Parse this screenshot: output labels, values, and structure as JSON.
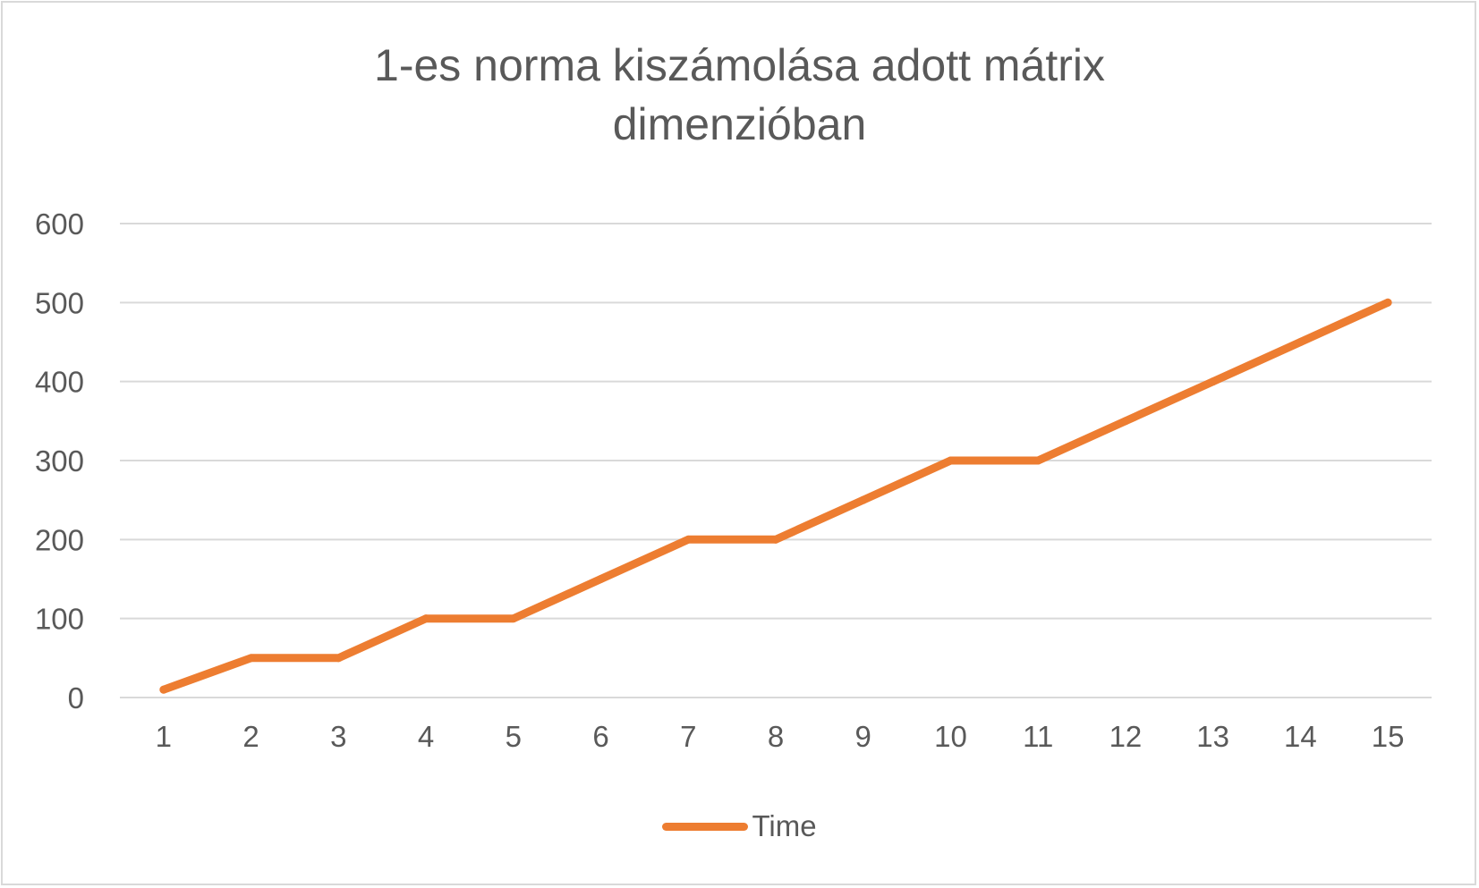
{
  "chart_data": {
    "type": "line",
    "title_lines": [
      "1-es norma kiszámolása adott mátrix",
      "dimenzióban"
    ],
    "categories": [
      "1",
      "2",
      "3",
      "4",
      "5",
      "6",
      "7",
      "8",
      "9",
      "10",
      "11",
      "12",
      "13",
      "14",
      "15"
    ],
    "series": [
      {
        "name": "Time",
        "color": "#ed7d31",
        "values": [
          10,
          50,
          50,
          100,
          100,
          150,
          200,
          200,
          250,
          300,
          300,
          350,
          400,
          450,
          500
        ]
      }
    ],
    "yticks": [
      "0",
      "100",
      "200",
      "300",
      "400",
      "500",
      "600"
    ],
    "ylim": [
      0,
      600
    ],
    "grid": true,
    "legend_position": "bottom"
  }
}
